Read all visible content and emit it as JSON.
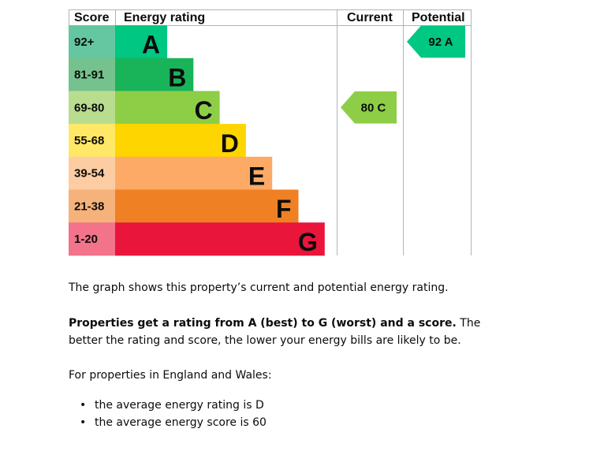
{
  "chart_data": {
    "type": "table",
    "headers": {
      "score": "Score",
      "rating": "Energy rating",
      "current": "Current",
      "potential": "Potential"
    },
    "bands": [
      {
        "letter": "A",
        "range": "92+",
        "color": "#00c781",
        "label_color": "#64c7a2",
        "text_color": "#0b0c0c"
      },
      {
        "letter": "B",
        "range": "81-91",
        "color": "#19b459",
        "label_color": "#75c28e",
        "text_color": "#0b0c0c"
      },
      {
        "letter": "C",
        "range": "69-80",
        "color": "#8dce46",
        "label_color": "#b9dd8e",
        "text_color": "#0b0c0c"
      },
      {
        "letter": "D",
        "range": "55-68",
        "color": "#ffd500",
        "label_color": "#ffe866",
        "text_color": "#0b0c0c"
      },
      {
        "letter": "E",
        "range": "39-54",
        "color": "#fcaa65",
        "label_color": "#fdcca2",
        "text_color": "#0b0c0c"
      },
      {
        "letter": "F",
        "range": "21-38",
        "color": "#ef8023",
        "label_color": "#f5b27b",
        "text_color": "#0b0c0c"
      },
      {
        "letter": "G",
        "range": "1-20",
        "color": "#e9153b",
        "label_color": "#f2738a",
        "text_color": "#0b0c0c"
      }
    ],
    "current": {
      "score": 80,
      "band": "C",
      "label": "80 C"
    },
    "potential": {
      "score": 92,
      "band": "A",
      "label": "92 A"
    }
  },
  "text": {
    "intro": "The graph shows this property’s current and potential energy rating.",
    "ratings_bold": "Properties get a rating from A (best) to G (worst) and a score.",
    "ratings_rest": " The better the rating and score, the lower your energy bills are likely to be.",
    "region": "For properties in England and Wales:",
    "bullets": [
      "the average energy rating is D",
      "the average energy score is 60"
    ]
  }
}
